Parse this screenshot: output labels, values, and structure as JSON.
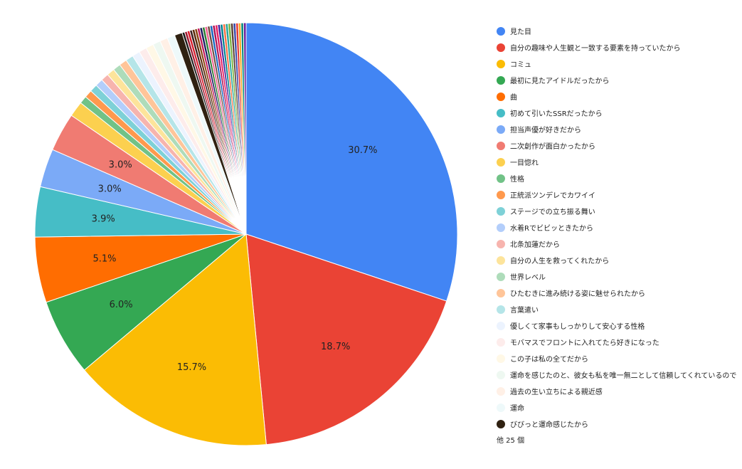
{
  "chart_data": {
    "type": "pie",
    "slices": [
      {
        "label": "見た目",
        "value": 30.7,
        "color": "#4285f4"
      },
      {
        "label": "自分の趣味や人生観と一致する要素を持っていたから",
        "value": 18.7,
        "color": "#ea4335"
      },
      {
        "label": "コミュ",
        "value": 15.7,
        "color": "#fbbc04"
      },
      {
        "label": "最初に見たアイドルだったから",
        "value": 6.0,
        "color": "#34a853"
      },
      {
        "label": "曲",
        "value": 5.1,
        "color": "#ff6d01"
      },
      {
        "label": "初めて引いたSSRだったから",
        "value": 3.9,
        "color": "#46bdc6"
      },
      {
        "label": "担当声優が好きだから",
        "value": 3.0,
        "color": "#7baaf7"
      },
      {
        "label": "二次創作が面白かったから",
        "value": 3.0,
        "color": "#f07b72"
      },
      {
        "label": "一目惚れ",
        "value": 1.2,
        "color": "#fcd04f"
      },
      {
        "label": "性格",
        "value": 0.6,
        "color": "#71c287"
      },
      {
        "label": "正統派ツンデレでカワイイ",
        "value": 0.6,
        "color": "#ff994d"
      },
      {
        "label": "ステージでの立ち振る舞い",
        "value": 0.6,
        "color": "#7ed1d7"
      },
      {
        "label": "水着Rでビビッときたから",
        "value": 0.6,
        "color": "#b3cefb"
      },
      {
        "label": "北条加蓮だから",
        "value": 0.6,
        "color": "#f7b4ae"
      },
      {
        "label": "自分の人生を救ってくれたから",
        "value": 0.6,
        "color": "#fde49b"
      },
      {
        "label": "世界レベル",
        "value": 0.6,
        "color": "#aedcba"
      },
      {
        "label": "ひたむきに進み続ける姿に魅せられたから",
        "value": 0.6,
        "color": "#ffc599"
      },
      {
        "label": "言葉遣い",
        "value": 0.6,
        "color": "#b5e5e8"
      },
      {
        "label": "優しくて家事もしっかりして安心する性格",
        "value": 0.6,
        "color": "#ecf3fe"
      },
      {
        "label": "モバマスでフロントに入れてたら好きになった",
        "value": 0.6,
        "color": "#fdeceb"
      },
      {
        "label": "この子は私の全てだから",
        "value": 0.6,
        "color": "#fff8e6"
      },
      {
        "label": "運命を感じたのと、彼女も私を唯一無二として信頼してくれているので",
        "value": 0.6,
        "color": "#eef8f1"
      },
      {
        "label": "過去の生い立ちによる親近感",
        "value": 0.6,
        "color": "#fff0e6"
      },
      {
        "label": "運命",
        "value": 0.6,
        "color": "#eef9fa"
      },
      {
        "label": "びびっと運命感じたから",
        "value": 0.6,
        "color": "#2f2111"
      }
    ],
    "other_colors": [
      "#1b1b1b",
      "#9e1b32",
      "#d91a2a",
      "#3b1f1f",
      "#5c2b0a",
      "#8b4513",
      "#c2185b",
      "#1a1a60",
      "#2e7d32",
      "#f06292",
      "#6d4c41",
      "#1565c0",
      "#ad1457",
      "#e91e63",
      "#4527a0",
      "#00838f",
      "#ff7043",
      "#26a69a",
      "#7cb342",
      "#5d4037",
      "#3949ab",
      "#e53935",
      "#f9a825",
      "#00897b",
      "#6a1b9a"
    ],
    "other_value_each": 0.2,
    "legend_more": "他 25 個",
    "data_labels": [
      "30.7%",
      "18.7%",
      "15.7%",
      "6.0%",
      "5.1%",
      "3.9%",
      "3.0%",
      "3.0%"
    ],
    "legend_position": "right"
  }
}
